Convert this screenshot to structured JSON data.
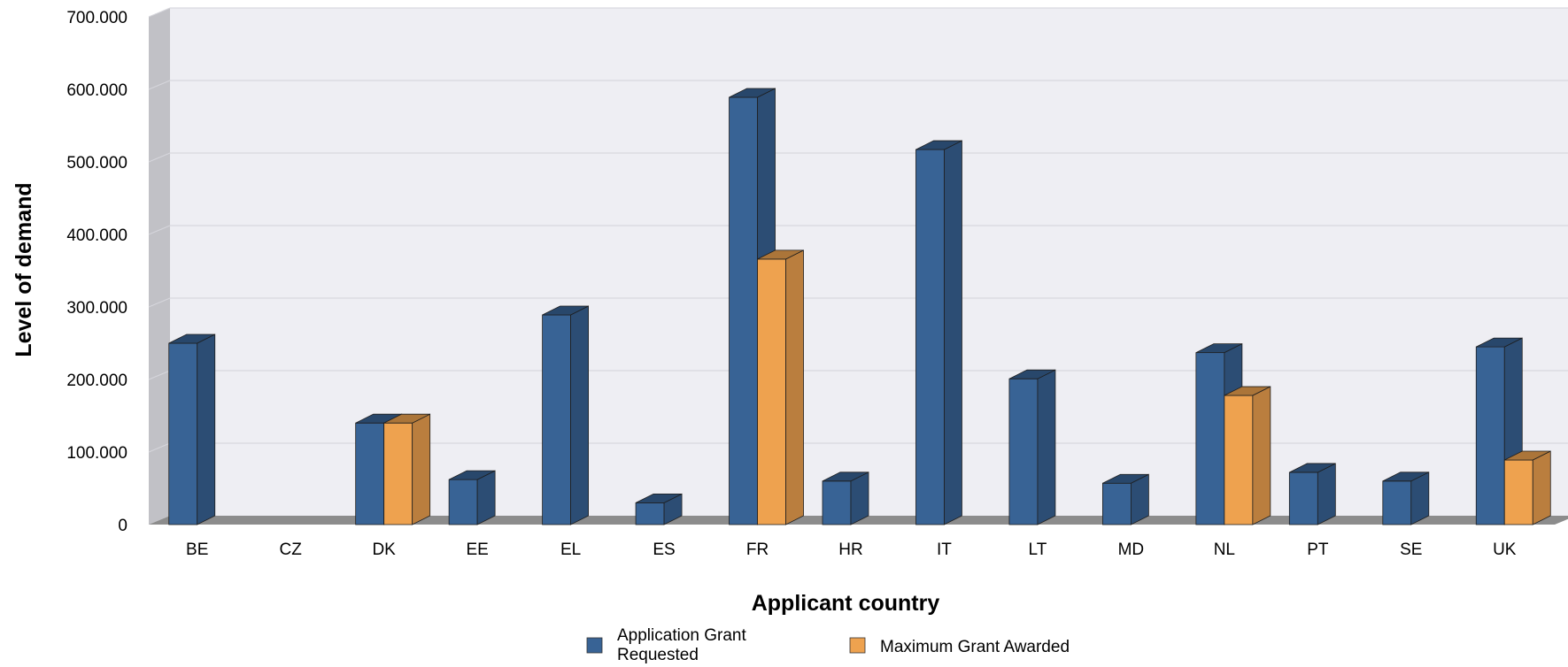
{
  "chart_data": {
    "type": "bar",
    "title": "",
    "xlabel": "Applicant country",
    "ylabel": "Level of demand",
    "ylim": [
      0,
      700000
    ],
    "yticks": [
      0,
      100000,
      200000,
      300000,
      400000,
      500000,
      600000,
      700000
    ],
    "ytick_labels": [
      "0",
      "100.000",
      "200.000",
      "300.000",
      "400.000",
      "500.000",
      "600.000",
      "700.000"
    ],
    "categories": [
      "BE",
      "CZ",
      "DK",
      "EE",
      "EL",
      "ES",
      "FR",
      "HR",
      "IT",
      "LT",
      "MD",
      "NL",
      "PT",
      "SE",
      "UK"
    ],
    "series": [
      {
        "name": "Application Grant Requested",
        "name_lines": [
          "Application Grant",
          "Requested"
        ],
        "color": "#386395",
        "values": [
          250000,
          0,
          140000,
          62000,
          289000,
          30000,
          589000,
          60000,
          517000,
          201000,
          57000,
          237000,
          72000,
          60000,
          245000
        ]
      },
      {
        "name": "Maximum Grant Awarded",
        "name_lines": [
          "Maximum Grant Awarded"
        ],
        "color": "#eea24f",
        "values": [
          0,
          0,
          140000,
          0,
          0,
          0,
          366000,
          0,
          0,
          0,
          0,
          178000,
          0,
          0,
          89000
        ]
      }
    ],
    "grid": true,
    "legend": "bottom",
    "style": "3d"
  }
}
